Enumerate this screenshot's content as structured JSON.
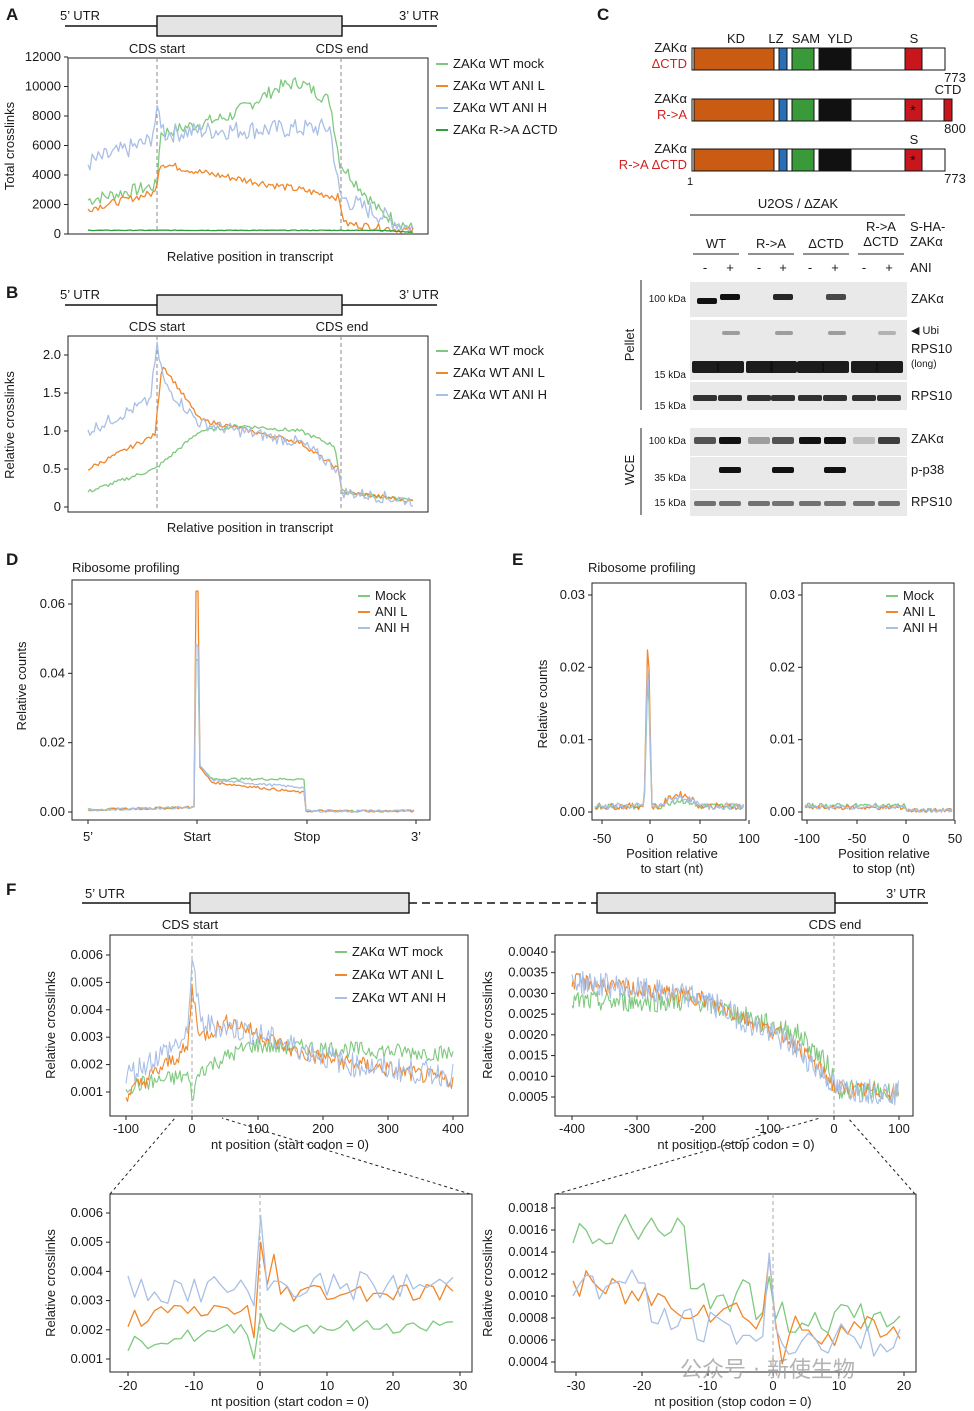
{
  "panels": {
    "A": {
      "letter": "A",
      "utr5": "5’ UTR",
      "utr3": "3’ UTR",
      "cds_start": "CDS start",
      "cds_end": "CDS end",
      "ylabel": "Total crosslinks",
      "xlabel": "Relative position in transcript",
      "yticks": [
        "0",
        "2000",
        "4000",
        "6000",
        "8000",
        "10000",
        "12000"
      ],
      "legend": [
        "ZAKα WT mock",
        "ZAKα WT ANI L",
        "ZAKα WT ANI H",
        "ZAKα R->A ΔCTD"
      ]
    },
    "B": {
      "letter": "B",
      "utr5": "5’ UTR",
      "utr3": "3’ UTR",
      "cds_start": "CDS start",
      "cds_end": "CDS end",
      "ylabel": "Relative crosslinks",
      "xlabel": "Relative position in transcript",
      "yticks": [
        "0",
        "0.5",
        "1.0",
        "1.5",
        "2.0"
      ],
      "legend": [
        "ZAKα WT mock",
        "ZAKα WT ANI L",
        "ZAKα WT ANI H"
      ]
    },
    "C": {
      "letter": "C",
      "domain_labels": [
        "KD",
        "LZ",
        "SAM",
        "YLD",
        "S"
      ],
      "constructs": [
        {
          "name": "ZAKα",
          "variant": "ΔCTD",
          "end": "773"
        },
        {
          "name": "ZAKα",
          "variant": "R->A",
          "ctd": "CTD",
          "end": "800"
        },
        {
          "name": "ZAKα",
          "variant": "R->A ΔCTD",
          "s": "S",
          "start": "1",
          "end": "773"
        }
      ],
      "blot": {
        "cell_line": "U2OS / ΔZAK",
        "groups": [
          "WT",
          "R->A",
          "ΔCTD",
          "R->A\nΔCTD"
        ],
        "col_header": "S-HA-\nZAKα",
        "ani_label": "ANI",
        "signs": [
          "-",
          "+",
          "-",
          "+",
          "-",
          "+",
          "-",
          "+"
        ],
        "pellet_label": "Pellet",
        "wce_label": "WCE",
        "rows": [
          {
            "kda": "100 kDa",
            "label": "ZAKα"
          },
          {
            "kda": "",
            "label": "◀ Ubi"
          },
          {
            "kda": "15 kDa",
            "label": "RPS10",
            "sub": "(long)"
          },
          {
            "kda": "15 kDa",
            "label": "RPS10"
          },
          {
            "kda": "100 kDa",
            "label": "ZAKα"
          },
          {
            "kda": "35 kDa",
            "label": "p-p38"
          },
          {
            "kda": "15 kDa",
            "label": "RPS10"
          }
        ]
      }
    },
    "D": {
      "letter": "D",
      "title": "Ribosome profiling",
      "ylabel": "Relative counts",
      "yticks": [
        "0.00",
        "0.02",
        "0.04",
        "0.06"
      ],
      "xticks": [
        "5’",
        "Start",
        "Stop",
        "3’"
      ],
      "legend": [
        "Mock",
        "ANI L",
        "ANI H"
      ]
    },
    "E": {
      "letter": "E",
      "title": "Ribosome profiling",
      "ylabel": "Relative counts",
      "yticks": [
        "0.00",
        "0.01",
        "0.02",
        "0.03"
      ],
      "left_xticks": [
        "-50",
        "0",
        "50",
        "100"
      ],
      "right_xticks": [
        "-100",
        "-50",
        "0",
        "50"
      ],
      "left_xlabel": "Position relative\nto start (nt)",
      "right_xlabel": "Position relative\nto stop (nt)",
      "legend": [
        "Mock",
        "ANI L",
        "ANI H"
      ]
    },
    "F": {
      "letter": "F",
      "utr5": "5’ UTR",
      "utr3": "3’ UTR",
      "cds_start": "CDS start",
      "cds_end": "CDS end",
      "ylabel": "Relative crosslinks",
      "legend": [
        "ZAKα WT mock",
        "ZAKα WT ANI L",
        "ZAKα WT ANI H"
      ],
      "tl_yticks": [
        "0.001",
        "0.002",
        "0.003",
        "0.004",
        "0.005",
        "0.006"
      ],
      "tl_xticks": [
        "-100",
        "0",
        "100",
        "200",
        "300",
        "400"
      ],
      "tl_xlabel": "nt position (start codon = 0)",
      "tr_yticks": [
        "0.0005",
        "0.0010",
        "0.0015",
        "0.0020",
        "0.0025",
        "0.0030",
        "0.0035",
        "0.0040"
      ],
      "tr_xticks": [
        "-400",
        "-300",
        "-200",
        "-100",
        "0",
        "100"
      ],
      "tr_xlabel": "nt position (stop codon = 0)",
      "bl_yticks": [
        "0.001",
        "0.002",
        "0.003",
        "0.004",
        "0.005",
        "0.006"
      ],
      "bl_xticks": [
        "-20",
        "-10",
        "0",
        "10",
        "20",
        "30"
      ],
      "bl_xlabel": "nt position (start codon = 0)",
      "br_yticks": [
        "0.0004",
        "0.0006",
        "0.0008",
        "0.0010",
        "0.0012",
        "0.0014",
        "0.0016",
        "0.0018"
      ],
      "br_xticks": [
        "-30",
        "-20",
        "-10",
        "0",
        "10",
        "20"
      ],
      "br_xlabel": "nt position (stop codon = 0)"
    }
  },
  "colors": {
    "mock": "#7fc97f",
    "anil": "#f0872a",
    "anih": "#a9bfe6",
    "ra": "#2e9e3f",
    "kd": "#c95c12",
    "lz": "#2a6fb5",
    "sam": "#3a9a3a",
    "yld": "#111111",
    "s": "#c8161d",
    "red": "#d42020"
  },
  "watermark": "公众号 · 新使生物",
  "chart_data": [
    {
      "type": "line",
      "panel": "A",
      "ylabel": "Total crosslinks",
      "xlabel": "Relative position in transcript",
      "ylim": [
        0,
        12000
      ],
      "x": [
        0,
        0.2,
        0.4,
        0.6,
        0.8,
        1.0
      ],
      "series": [
        {
          "name": "ZAKα WT mock",
          "values": [
            2200,
            3200,
            7200,
            9800,
            10300,
            300
          ]
        },
        {
          "name": "ZAKα WT ANI L",
          "values": [
            1600,
            2900,
            4600,
            3700,
            2600,
            200
          ]
        },
        {
          "name": "ZAKα WT ANI H",
          "values": [
            4500,
            6000,
            7300,
            7200,
            7500,
            300
          ]
        },
        {
          "name": "ZAKα R->A ΔCTD",
          "values": [
            250,
            250,
            250,
            250,
            250,
            100
          ]
        }
      ]
    },
    {
      "type": "line",
      "panel": "B",
      "ylabel": "Relative crosslinks",
      "xlabel": "Relative position in transcript",
      "ylim": [
        0,
        2.0
      ],
      "x": [
        0,
        0.2,
        0.4,
        0.6,
        0.8,
        1.0
      ],
      "series": [
        {
          "name": "ZAKα WT mock",
          "values": [
            0.2,
            0.5,
            1.0,
            1.05,
            0.95,
            0.1
          ]
        },
        {
          "name": "ZAKα WT ANI L",
          "values": [
            0.5,
            1.0,
            1.6,
            1.0,
            0.75,
            0.1
          ]
        },
        {
          "name": "ZAKα WT ANI H",
          "values": [
            1.0,
            1.4,
            1.6,
            1.0,
            0.8,
            0.1
          ]
        }
      ]
    },
    {
      "type": "line",
      "panel": "D",
      "ylabel": "Relative counts",
      "ylim": [
        0,
        0.065
      ],
      "categories": [
        "5’",
        "Start",
        "Stop",
        "3’"
      ],
      "series": [
        {
          "name": "Mock",
          "values": [
            0.001,
            0.044,
            0.009,
            0.001
          ]
        },
        {
          "name": "ANI L",
          "values": [
            0.001,
            0.064,
            0.006,
            0.001
          ]
        },
        {
          "name": "ANI H",
          "values": [
            0.001,
            0.048,
            0.007,
            0.001
          ]
        }
      ]
    },
    {
      "type": "line",
      "panel": "E",
      "ylabel": "Relative counts",
      "ylim": [
        0,
        0.03
      ],
      "series": [
        {
          "name": "Mock",
          "values": [
            0.001,
            0.02,
            0.001,
            0.001
          ]
        },
        {
          "name": "ANI L",
          "values": [
            0.001,
            0.026,
            0.002,
            0.001
          ]
        },
        {
          "name": "ANI H",
          "values": [
            0.001,
            0.022,
            0.002,
            0.001
          ]
        }
      ]
    }
  ]
}
